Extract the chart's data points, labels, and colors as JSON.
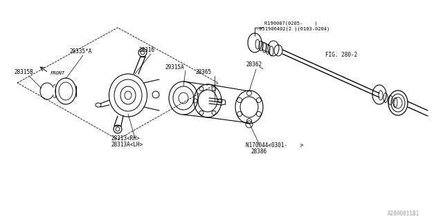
{
  "bg_color": "#ffffff",
  "line_color": "#000000",
  "fig_width": 6.4,
  "fig_height": 3.2,
  "dpi": 100,
  "watermark": "A280001181",
  "labels": {
    "28335A": "28335*A",
    "28316": "28316",
    "28315B": "28315B",
    "28362": "28362",
    "29315A": "29315A",
    "28365": "28365",
    "28313RH": "28313<RH>",
    "28313ALH": "28313A<LH>",
    "N170044": "N170044<0301-    >",
    "28386": "28386",
    "R190007a": "R190007<0205-    >",
    "R190007b": "-051906402(2 )(0103-0204)",
    "FIG280": "FIG. 280-2",
    "FRONT": "FRONT"
  }
}
